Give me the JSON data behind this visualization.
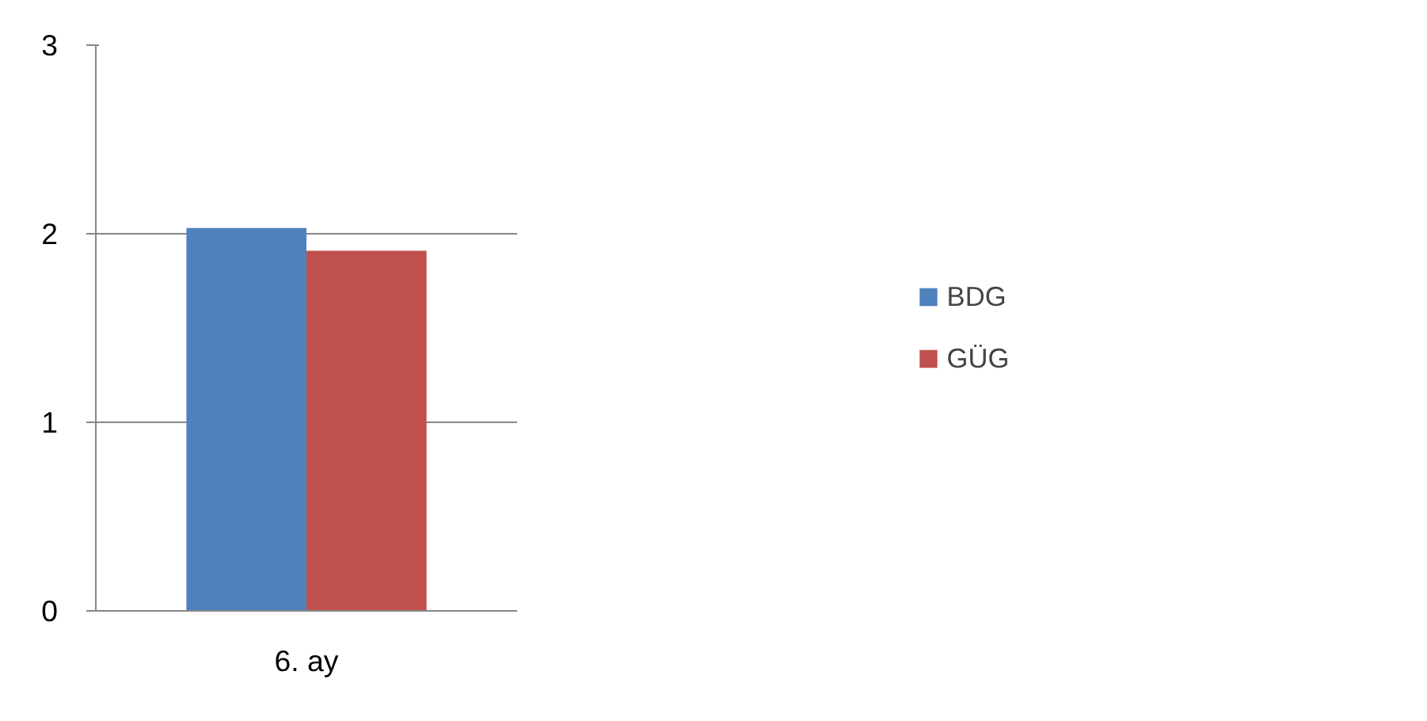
{
  "chart_data": {
    "type": "bar",
    "categories": [
      "6. ay"
    ],
    "series": [
      {
        "name": "BDG",
        "color": "#4f81bd",
        "values": [
          2.03
        ]
      },
      {
        "name": "GÜG",
        "color": "#c0504d",
        "values": [
          1.91
        ]
      }
    ],
    "ylim": [
      0,
      3
    ],
    "yticks": [
      0,
      1,
      2,
      3
    ],
    "grid": "y",
    "legend": "right"
  }
}
